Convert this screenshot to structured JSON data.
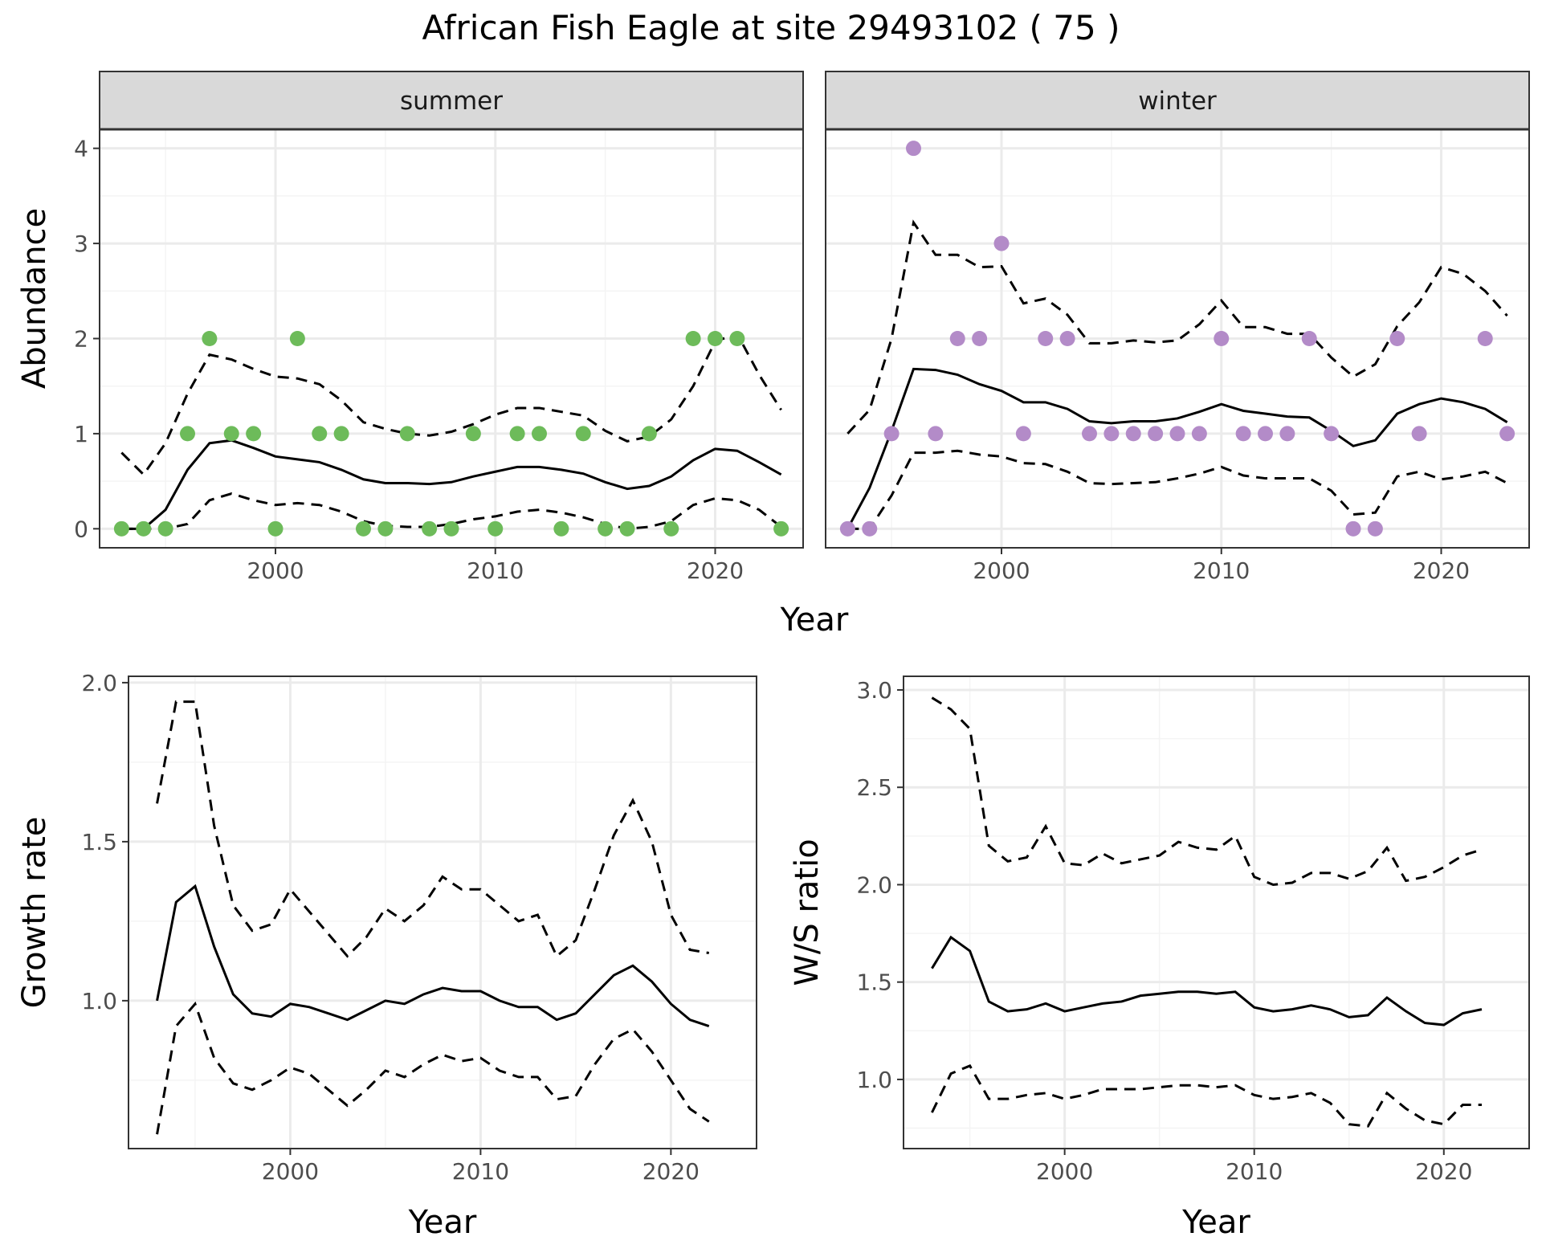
{
  "title": "African Fish Eagle at site 29493102 ( 75 )",
  "colors": {
    "summer_points": "#6dbb5a",
    "winter_points": "#b38bc8",
    "line": "#000000",
    "grid_major": "#ebebeb",
    "grid_minor": "#f4f4f4",
    "strip_fill": "#d9d9d9",
    "strip_border": "#333333",
    "panel_border": "#333333"
  },
  "chart_data": [
    {
      "type": "line",
      "panel": "abundance",
      "facets": [
        "summer",
        "winter"
      ],
      "xlabel": "Year",
      "ylabel": "Abundance",
      "xlim": [
        1992,
        2024
      ],
      "ylim": [
        -0.2,
        4.2
      ],
      "xticks": [
        2000,
        2010,
        2020
      ],
      "yticks": [
        0,
        1,
        2,
        3,
        4
      ],
      "grid": true,
      "summer": {
        "points": {
          "x": [
            1993,
            1994,
            1995,
            1996,
            1997,
            1998,
            1999,
            2000,
            2001,
            2002,
            2003,
            2004,
            2005,
            2006,
            2007,
            2008,
            2009,
            2010,
            2011,
            2012,
            2013,
            2014,
            2015,
            2016,
            2017,
            2018,
            2019,
            2020,
            2021,
            2023
          ],
          "y": [
            0,
            0,
            0,
            1,
            2,
            1,
            1,
            0,
            2,
            1,
            1,
            0,
            0,
            1,
            0,
            0,
            1,
            0,
            1,
            1,
            0,
            1,
            0,
            0,
            1,
            0,
            2,
            2,
            2,
            0
          ]
        },
        "mean": {
          "x": [
            1993,
            1994,
            1995,
            1996,
            1997,
            1998,
            1999,
            2000,
            2001,
            2002,
            2003,
            2004,
            2005,
            2006,
            2007,
            2008,
            2009,
            2010,
            2011,
            2012,
            2013,
            2014,
            2015,
            2016,
            2017,
            2018,
            2019,
            2020,
            2021,
            2022,
            2023
          ],
          "y": [
            0,
            0,
            0.2,
            0.62,
            0.9,
            0.93,
            0.85,
            0.76,
            0.73,
            0.7,
            0.62,
            0.52,
            0.48,
            0.48,
            0.47,
            0.49,
            0.55,
            0.6,
            0.65,
            0.65,
            0.62,
            0.58,
            0.49,
            0.42,
            0.45,
            0.55,
            0.72,
            0.84,
            0.82,
            0.7,
            0.57
          ]
        },
        "lower": {
          "x": [
            1993,
            1994,
            1995,
            1996,
            1997,
            1998,
            1999,
            2000,
            2001,
            2002,
            2003,
            2004,
            2005,
            2006,
            2007,
            2008,
            2009,
            2010,
            2011,
            2012,
            2013,
            2014,
            2015,
            2016,
            2017,
            2018,
            2019,
            2020,
            2021,
            2022,
            2023
          ],
          "y": [
            0,
            0,
            0,
            0.05,
            0.3,
            0.37,
            0.3,
            0.25,
            0.27,
            0.25,
            0.18,
            0.08,
            0.03,
            0.02,
            0.02,
            0.05,
            0.1,
            0.13,
            0.18,
            0.2,
            0.17,
            0.12,
            0.05,
            0,
            0.02,
            0.08,
            0.25,
            0.32,
            0.3,
            0.2,
            0.02
          ]
        },
        "upper": {
          "x": [
            1993,
            1994,
            1995,
            1996,
            1997,
            1998,
            1999,
            2000,
            2001,
            2002,
            2003,
            2004,
            2005,
            2006,
            2007,
            2008,
            2009,
            2010,
            2011,
            2012,
            2013,
            2014,
            2015,
            2016,
            2017,
            2018,
            2019,
            2020,
            2021,
            2022,
            2023
          ],
          "y": [
            0.8,
            0.57,
            0.9,
            1.42,
            1.83,
            1.78,
            1.68,
            1.6,
            1.58,
            1.52,
            1.35,
            1.12,
            1.05,
            1.0,
            0.98,
            1.02,
            1.1,
            1.2,
            1.27,
            1.27,
            1.23,
            1.19,
            1.03,
            0.92,
            0.97,
            1.15,
            1.5,
            1.97,
            2.05,
            1.62,
            1.25
          ]
        }
      },
      "winter": {
        "points": {
          "x": [
            1993,
            1994,
            1995,
            1996,
            1997,
            1998,
            1999,
            2000,
            2001,
            2002,
            2003,
            2004,
            2005,
            2006,
            2007,
            2008,
            2009,
            2010,
            2011,
            2012,
            2013,
            2014,
            2015,
            2016,
            2017,
            2018,
            2019,
            2022,
            2023
          ],
          "y": [
            0,
            0,
            1,
            4,
            1,
            2,
            2,
            3,
            1,
            2,
            2,
            1,
            1,
            1,
            1,
            1,
            1,
            2,
            1,
            1,
            1,
            2,
            1,
            0,
            0,
            2,
            1,
            2,
            1
          ]
        },
        "mean": {
          "x": [
            1993,
            1994,
            1995,
            1996,
            1997,
            1998,
            1999,
            2000,
            2001,
            2002,
            2003,
            2004,
            2005,
            2006,
            2007,
            2008,
            2009,
            2010,
            2011,
            2012,
            2013,
            2014,
            2015,
            2016,
            2017,
            2018,
            2019,
            2020,
            2021,
            2022,
            2023
          ],
          "y": [
            0,
            0.43,
            1.03,
            1.68,
            1.67,
            1.62,
            1.52,
            1.45,
            1.33,
            1.33,
            1.26,
            1.13,
            1.11,
            1.13,
            1.13,
            1.16,
            1.23,
            1.31,
            1.24,
            1.21,
            1.18,
            1.17,
            1.03,
            0.87,
            0.93,
            1.21,
            1.31,
            1.37,
            1.33,
            1.26,
            1.12
          ]
        },
        "lower": {
          "x": [
            1993,
            1994,
            1995,
            1996,
            1997,
            1998,
            1999,
            2000,
            2001,
            2002,
            2003,
            2004,
            2005,
            2006,
            2007,
            2008,
            2009,
            2010,
            2011,
            2012,
            2013,
            2014,
            2015,
            2016,
            2017,
            2018,
            2019,
            2020,
            2021,
            2022,
            2023
          ],
          "y": [
            0,
            0,
            0.35,
            0.8,
            0.8,
            0.82,
            0.78,
            0.76,
            0.69,
            0.68,
            0.6,
            0.48,
            0.47,
            0.48,
            0.49,
            0.53,
            0.58,
            0.65,
            0.56,
            0.53,
            0.53,
            0.53,
            0.4,
            0.15,
            0.17,
            0.55,
            0.6,
            0.52,
            0.55,
            0.6,
            0.48
          ]
        },
        "upper": {
          "x": [
            1993,
            1994,
            1995,
            1996,
            1997,
            1998,
            1999,
            2000,
            2001,
            2002,
            2003,
            2004,
            2005,
            2006,
            2007,
            2008,
            2009,
            2010,
            2011,
            2012,
            2013,
            2014,
            2015,
            2016,
            2017,
            2018,
            2019,
            2020,
            2021,
            2022,
            2023
          ],
          "y": [
            1.0,
            1.25,
            2.0,
            3.22,
            2.88,
            2.88,
            2.75,
            2.76,
            2.37,
            2.42,
            2.25,
            1.95,
            1.95,
            1.98,
            1.96,
            1.98,
            2.15,
            2.4,
            2.12,
            2.12,
            2.05,
            2.05,
            1.8,
            1.6,
            1.73,
            2.13,
            2.38,
            2.75,
            2.68,
            2.5,
            2.24
          ]
        }
      }
    },
    {
      "type": "line",
      "panel": "growth",
      "xlabel": "Year",
      "ylabel": "Growth rate",
      "xlim": [
        1991.5,
        2024.5
      ],
      "ylim": [
        0.535,
        2.02
      ],
      "xticks": [
        2000,
        2010,
        2020
      ],
      "yticks": [
        1.0,
        1.5,
        2.0
      ],
      "ytick_labels": [
        "1.0",
        "1.5",
        "2.0"
      ],
      "grid": true,
      "x": [
        1993,
        1994,
        1995,
        1996,
        1997,
        1998,
        1999,
        2000,
        2001,
        2002,
        2003,
        2004,
        2005,
        2006,
        2007,
        2008,
        2009,
        2010,
        2011,
        2012,
        2013,
        2014,
        2015,
        2016,
        2017,
        2018,
        2019,
        2020,
        2021,
        2022
      ],
      "mean": [
        1.0,
        1.31,
        1.36,
        1.17,
        1.02,
        0.96,
        0.95,
        0.99,
        0.98,
        0.96,
        0.94,
        0.97,
        1.0,
        0.99,
        1.02,
        1.04,
        1.03,
        1.03,
        1.0,
        0.98,
        0.98,
        0.94,
        0.96,
        1.02,
        1.08,
        1.11,
        1.06,
        0.99,
        0.94,
        0.92
      ],
      "lower": [
        0.58,
        0.92,
        0.99,
        0.82,
        0.74,
        0.72,
        0.75,
        0.79,
        0.77,
        0.72,
        0.67,
        0.72,
        0.78,
        0.76,
        0.8,
        0.83,
        0.81,
        0.82,
        0.78,
        0.76,
        0.76,
        0.69,
        0.7,
        0.8,
        0.88,
        0.91,
        0.84,
        0.75,
        0.66,
        0.62
      ],
      "upper": [
        1.62,
        1.94,
        1.94,
        1.55,
        1.3,
        1.22,
        1.24,
        1.35,
        1.28,
        1.21,
        1.14,
        1.2,
        1.29,
        1.25,
        1.3,
        1.39,
        1.35,
        1.35,
        1.3,
        1.25,
        1.27,
        1.14,
        1.19,
        1.35,
        1.52,
        1.63,
        1.5,
        1.27,
        1.16,
        1.15
      ]
    },
    {
      "type": "line",
      "panel": "ws_ratio",
      "xlabel": "Year",
      "ylabel": "W/S ratio",
      "xlim": [
        1991.5,
        2024.5
      ],
      "ylim": [
        0.645,
        3.07
      ],
      "xticks": [
        2000,
        2010,
        2020
      ],
      "yticks": [
        1.0,
        1.5,
        2.0,
        2.5,
        3.0
      ],
      "ytick_labels": [
        "1.0",
        "1.5",
        "2.0",
        "2.5",
        "3.0"
      ],
      "grid": true,
      "x": [
        1993,
        1994,
        1995,
        1996,
        1997,
        1998,
        1999,
        2000,
        2001,
        2002,
        2003,
        2004,
        2005,
        2006,
        2007,
        2008,
        2009,
        2010,
        2011,
        2012,
        2013,
        2014,
        2015,
        2016,
        2017,
        2018,
        2019,
        2020,
        2021,
        2022
      ],
      "mean": [
        1.57,
        1.73,
        1.66,
        1.4,
        1.35,
        1.36,
        1.39,
        1.35,
        1.37,
        1.39,
        1.4,
        1.43,
        1.44,
        1.45,
        1.45,
        1.44,
        1.45,
        1.37,
        1.35,
        1.36,
        1.38,
        1.36,
        1.32,
        1.33,
        1.42,
        1.35,
        1.29,
        1.28,
        1.34,
        1.36
      ],
      "lower": [
        0.83,
        1.03,
        1.07,
        0.9,
        0.9,
        0.92,
        0.93,
        0.9,
        0.92,
        0.95,
        0.95,
        0.95,
        0.96,
        0.97,
        0.97,
        0.96,
        0.97,
        0.92,
        0.9,
        0.91,
        0.93,
        0.88,
        0.77,
        0.76,
        0.93,
        0.85,
        0.79,
        0.77,
        0.87,
        0.87
      ],
      "upper": [
        2.96,
        2.9,
        2.8,
        2.2,
        2.12,
        2.14,
        2.3,
        2.11,
        2.1,
        2.16,
        2.11,
        2.13,
        2.15,
        2.22,
        2.19,
        2.18,
        2.25,
        2.04,
        2.0,
        2.01,
        2.06,
        2.06,
        2.03,
        2.07,
        2.19,
        2.02,
        2.04,
        2.09,
        2.15,
        2.18
      ]
    }
  ]
}
